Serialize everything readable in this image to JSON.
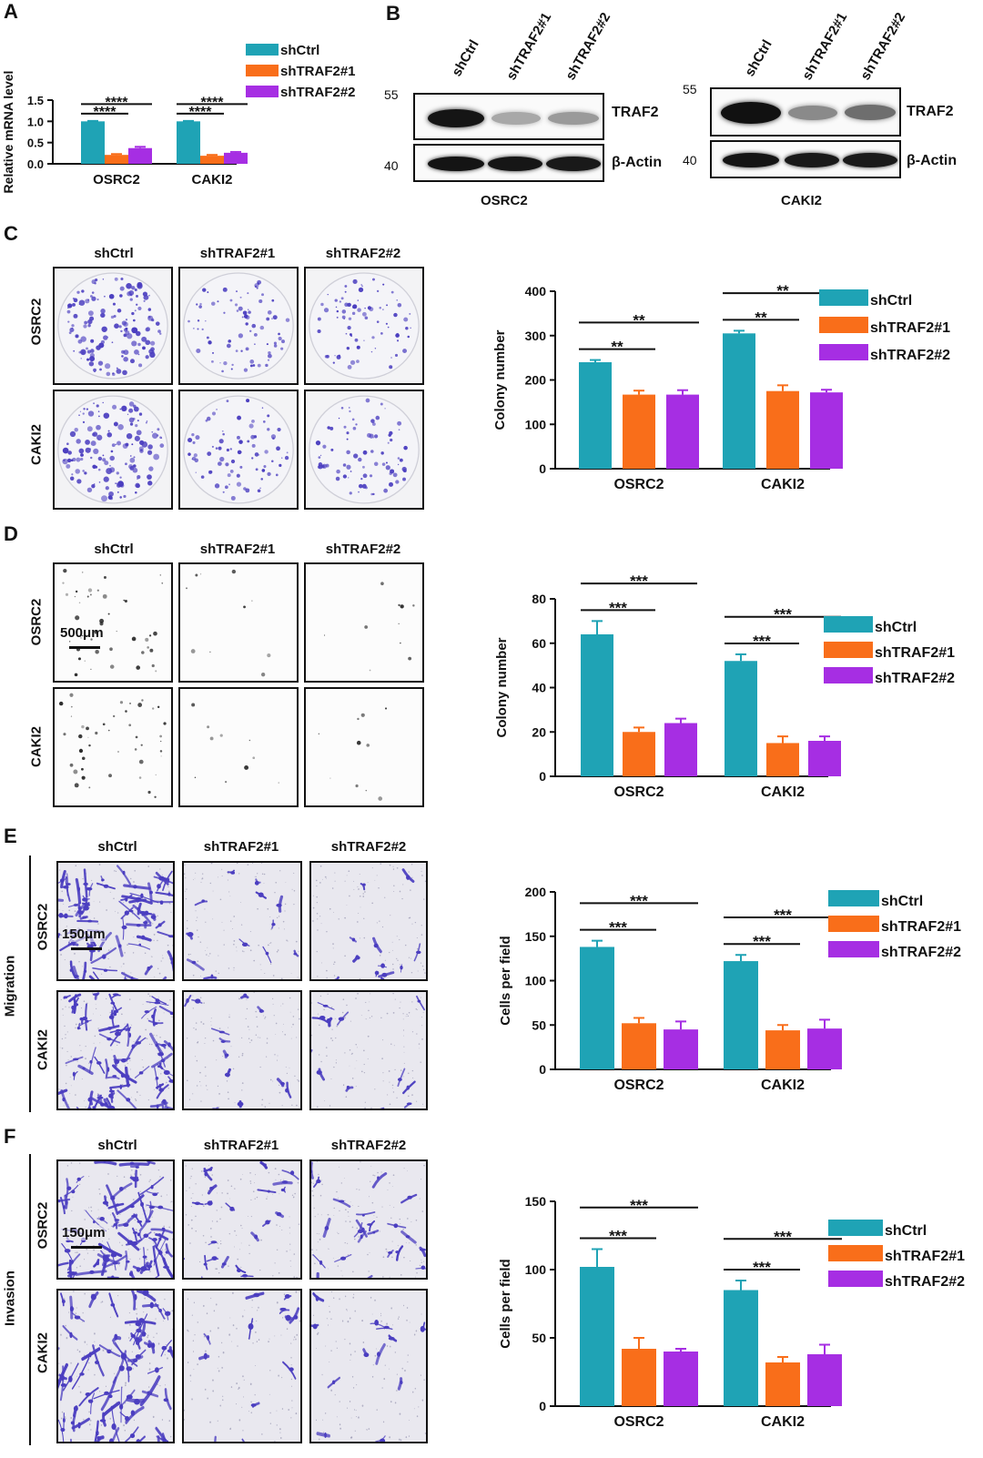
{
  "panels": {
    "A": "A",
    "B": "B",
    "C": "C",
    "D": "D",
    "E": "E",
    "F": "F"
  },
  "groups": [
    "shCtrl",
    "shTRAF2#1",
    "shTRAF2#2"
  ],
  "cells": [
    "OSRC2",
    "CAKI2"
  ],
  "colors": {
    "shCtrl": "#1fa3b5",
    "shTRAF2#1": "#f96e1a",
    "shTRAF2#2": "#a62ee3",
    "stain": "#4b3ec0"
  },
  "blot": {
    "lanes": [
      "shCtrl",
      "shTRAF2#1",
      "shTRAF2#2"
    ],
    "proteins": [
      "TRAF2",
      "β-Actin"
    ],
    "mw_top": "55",
    "mw_bottom": "40",
    "cell_labels": [
      "OSRC2",
      "CAKI2"
    ]
  },
  "images": {
    "scale_500": "500μm",
    "scale_150": "150μm",
    "migration_label": "Migration",
    "invasion_label": "Invasion"
  },
  "chart_data": [
    {
      "id": "A",
      "type": "bar",
      "categories": [
        "OSRC2",
        "CAKI2"
      ],
      "series": [
        {
          "name": "shCtrl",
          "values": [
            1.0,
            1.0
          ],
          "err": [
            0.01,
            0.01
          ]
        },
        {
          "name": "shTRAF2#1",
          "values": [
            0.21,
            0.19
          ],
          "err": [
            0.02,
            0.02
          ]
        },
        {
          "name": "shTRAF2#2",
          "values": [
            0.37,
            0.26
          ],
          "err": [
            0.03,
            0.02
          ]
        }
      ],
      "ylabel": "Relative mRNA level",
      "ylim": [
        0,
        1.5
      ],
      "yticks": [
        0.0,
        0.5,
        1.0,
        1.5
      ],
      "ytick_labels": [
        "0.0",
        "0.5",
        "1.0",
        "1.5"
      ],
      "significance": [
        {
          "cat": 0,
          "from": 0,
          "to": 1,
          "label": "****"
        },
        {
          "cat": 0,
          "from": 0,
          "to": 2,
          "label": "****"
        },
        {
          "cat": 1,
          "from": 0,
          "to": 1,
          "label": "****"
        },
        {
          "cat": 1,
          "from": 0,
          "to": 2,
          "label": "****"
        }
      ]
    },
    {
      "id": "C",
      "type": "bar",
      "categories": [
        "OSRC2",
        "CAKI2"
      ],
      "series": [
        {
          "name": "shCtrl",
          "values": [
            240,
            305
          ],
          "err": [
            5,
            6
          ]
        },
        {
          "name": "shTRAF2#1",
          "values": [
            167,
            175
          ],
          "err": [
            9,
            13
          ]
        },
        {
          "name": "shTRAF2#2",
          "values": [
            167,
            172
          ],
          "err": [
            10,
            6
          ]
        }
      ],
      "ylabel": "Colony number",
      "ylim": [
        0,
        400
      ],
      "yticks": [
        0,
        100,
        200,
        300,
        400
      ],
      "ytick_labels": [
        "0",
        "100",
        "200",
        "300",
        "400"
      ],
      "significance": [
        {
          "cat": 0,
          "from": 0,
          "to": 1,
          "label": "**"
        },
        {
          "cat": 0,
          "from": 0,
          "to": 2,
          "label": "**"
        },
        {
          "cat": 1,
          "from": 0,
          "to": 1,
          "label": "**"
        },
        {
          "cat": 1,
          "from": 0,
          "to": 2,
          "label": "**"
        }
      ]
    },
    {
      "id": "D",
      "type": "bar",
      "categories": [
        "OSRC2",
        "CAKI2"
      ],
      "series": [
        {
          "name": "shCtrl",
          "values": [
            64,
            52
          ],
          "err": [
            6,
            3
          ]
        },
        {
          "name": "shTRAF2#1",
          "values": [
            20,
            15
          ],
          "err": [
            2,
            3
          ]
        },
        {
          "name": "shTRAF2#2",
          "values": [
            24,
            16
          ],
          "err": [
            2,
            2
          ]
        }
      ],
      "ylabel": "Colony number",
      "ylim": [
        0,
        80
      ],
      "yticks": [
        0,
        20,
        40,
        60,
        80
      ],
      "ytick_labels": [
        "0",
        "20",
        "40",
        "60",
        "80"
      ],
      "significance": [
        {
          "cat": 0,
          "from": 0,
          "to": 1,
          "label": "***"
        },
        {
          "cat": 0,
          "from": 0,
          "to": 2,
          "label": "***"
        },
        {
          "cat": 1,
          "from": 0,
          "to": 1,
          "label": "***"
        },
        {
          "cat": 1,
          "from": 0,
          "to": 2,
          "label": "***"
        }
      ]
    },
    {
      "id": "E",
      "type": "bar",
      "categories": [
        "OSRC2",
        "CAKI2"
      ],
      "series": [
        {
          "name": "shCtrl",
          "values": [
            138,
            122
          ],
          "err": [
            7,
            7
          ]
        },
        {
          "name": "shTRAF2#1",
          "values": [
            52,
            44
          ],
          "err": [
            6,
            6
          ]
        },
        {
          "name": "shTRAF2#2",
          "values": [
            45,
            46
          ],
          "err": [
            9,
            10
          ]
        }
      ],
      "ylabel": "Cells per field",
      "ylim": [
        0,
        200
      ],
      "yticks": [
        0,
        50,
        100,
        150,
        200
      ],
      "ytick_labels": [
        "0",
        "50",
        "100",
        "150",
        "200"
      ],
      "significance": [
        {
          "cat": 0,
          "from": 0,
          "to": 1,
          "label": "***"
        },
        {
          "cat": 0,
          "from": 0,
          "to": 2,
          "label": "***"
        },
        {
          "cat": 1,
          "from": 0,
          "to": 1,
          "label": "***"
        },
        {
          "cat": 1,
          "from": 0,
          "to": 2,
          "label": "***"
        }
      ]
    },
    {
      "id": "F",
      "type": "bar",
      "categories": [
        "OSRC2",
        "CAKI2"
      ],
      "series": [
        {
          "name": "shCtrl",
          "values": [
            102,
            85
          ],
          "err": [
            13,
            7
          ]
        },
        {
          "name": "shTRAF2#1",
          "values": [
            42,
            32
          ],
          "err": [
            8,
            4
          ]
        },
        {
          "name": "shTRAF2#2",
          "values": [
            40,
            38
          ],
          "err": [
            2,
            7
          ]
        }
      ],
      "ylabel": "Cells per field",
      "ylim": [
        0,
        150
      ],
      "yticks": [
        0,
        50,
        100,
        150
      ],
      "ytick_labels": [
        "0",
        "50",
        "100",
        "150"
      ],
      "significance": [
        {
          "cat": 0,
          "from": 0,
          "to": 1,
          "label": "***"
        },
        {
          "cat": 0,
          "from": 0,
          "to": 2,
          "label": "***"
        },
        {
          "cat": 1,
          "from": 0,
          "to": 1,
          "label": "***"
        },
        {
          "cat": 1,
          "from": 0,
          "to": 2,
          "label": "***"
        }
      ]
    }
  ]
}
